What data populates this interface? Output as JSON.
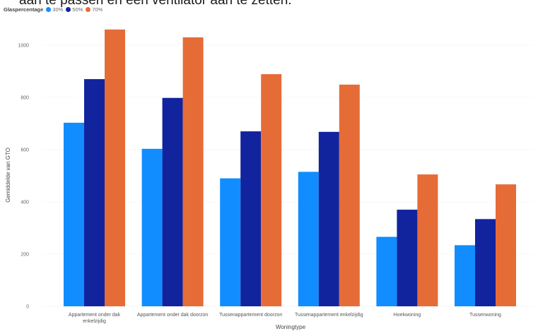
{
  "page": {
    "clipped_text": "aan te passen en een ventilator aan te zetten."
  },
  "chart_data": {
    "type": "bar",
    "legend_title": "Glaspercentage",
    "legend_position": "top-left",
    "categories": [
      "Appartement onder dak enkelzijdig",
      "Appartement onder dak doorzon",
      "Tussenappartement doorzon",
      "Tussenappartement enkelzijdig",
      "Hoekwoning",
      "Tussenwoning"
    ],
    "category_lines": [
      [
        "Appartement onder dak",
        "enkelzijdig"
      ],
      [
        "Appartement onder dak doorzon"
      ],
      [
        "Tussenappartement doorzon"
      ],
      [
        "Tussenappartement enkelzijdig"
      ],
      [
        "Hoekwoning"
      ],
      [
        "Tussenwoning"
      ]
    ],
    "series": [
      {
        "name": "30%",
        "color": "#118DFF",
        "values": [
          703,
          603,
          490,
          515,
          266,
          234
        ]
      },
      {
        "name": "50%",
        "color": "#12239E",
        "values": [
          870,
          798,
          670,
          668,
          370,
          334
        ]
      },
      {
        "name": "70%",
        "color": "#E66C37",
        "values": [
          1060,
          1030,
          889,
          849,
          505,
          467
        ]
      }
    ],
    "xlabel": "Woningtype",
    "ylabel": "Gemiddelde van GTO",
    "ylim": [
      0,
      1100
    ],
    "yticks": [
      0,
      200,
      400,
      600,
      800,
      1000
    ],
    "grid": true
  }
}
